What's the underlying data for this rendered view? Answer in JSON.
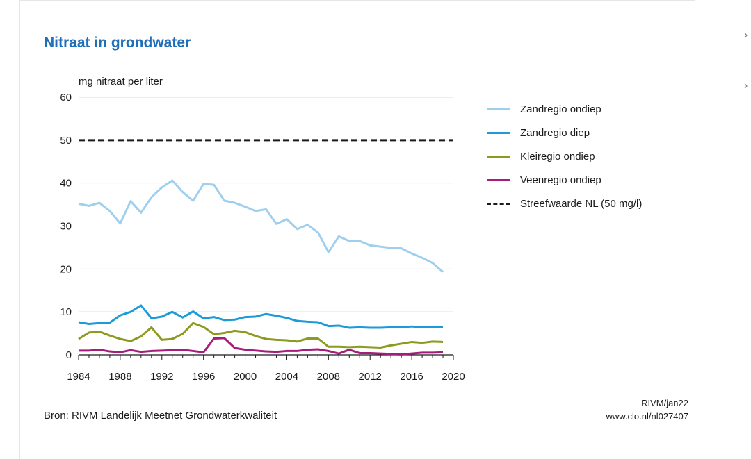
{
  "title": "Nitraat in grondwater",
  "source": "Bron: RIVM Landelijk Meetnet Grondwaterkwaliteit",
  "credit_line1": "RIVM/jan22",
  "credit_line2": "www.clo.nl/nl027407",
  "nav": {
    "chevron1": "›",
    "chevron2": "›"
  },
  "chart_data": {
    "type": "line",
    "ylabel": "mg nitraat per liter",
    "xlim": [
      1984,
      2020
    ],
    "ylim": [
      0,
      60
    ],
    "xticks": [
      "1984",
      "1988",
      "1992",
      "1996",
      "2000",
      "2004",
      "2008",
      "2012",
      "2016",
      "2020"
    ],
    "yticks": [
      "0",
      "10",
      "20",
      "30",
      "40",
      "50",
      "60"
    ],
    "grid": true,
    "legend_position": "right",
    "x": [
      1984,
      1985,
      1986,
      1987,
      1988,
      1989,
      1990,
      1991,
      1992,
      1993,
      1994,
      1995,
      1996,
      1997,
      1998,
      1999,
      2000,
      2001,
      2002,
      2003,
      2004,
      2005,
      2006,
      2007,
      2008,
      2009,
      2010,
      2011,
      2012,
      2013,
      2014,
      2015,
      2016,
      2017,
      2018,
      2019
    ],
    "series": [
      {
        "name": "Zandregio ondiep",
        "color": "#9fcfee",
        "values": [
          35.2,
          34.7,
          35.4,
          33.5,
          30.6,
          35.8,
          33.1,
          36.7,
          39.0,
          40.6,
          37.9,
          35.9,
          39.8,
          39.6,
          35.9,
          35.4,
          34.5,
          33.5,
          33.9,
          30.5,
          31.6,
          29.3,
          30.3,
          28.5,
          23.9,
          27.6,
          26.5,
          26.5,
          25.5,
          25.2,
          24.9,
          24.8,
          23.6,
          22.6,
          21.4,
          19.3
        ]
      },
      {
        "name": "Zandregio diep",
        "color": "#1d9bd8",
        "values": [
          7.6,
          7.2,
          7.4,
          7.5,
          9.2,
          10.0,
          11.5,
          8.5,
          8.9,
          10.0,
          8.7,
          10.1,
          8.5,
          8.8,
          8.1,
          8.2,
          8.8,
          8.9,
          9.5,
          9.1,
          8.6,
          7.9,
          7.7,
          7.6,
          6.7,
          6.8,
          6.3,
          6.4,
          6.3,
          6.3,
          6.4,
          6.4,
          6.6,
          6.4,
          6.5,
          6.5
        ]
      },
      {
        "name": "Kleiregio ondiep",
        "color": "#8c9a1f",
        "values": [
          3.7,
          5.2,
          5.4,
          4.5,
          3.7,
          3.2,
          4.3,
          6.4,
          3.5,
          3.7,
          4.9,
          7.4,
          6.5,
          4.8,
          5.1,
          5.6,
          5.3,
          4.4,
          3.7,
          3.5,
          3.4,
          3.1,
          3.8,
          3.8,
          1.9,
          1.9,
          1.8,
          1.9,
          1.8,
          1.7,
          2.2,
          2.6,
          3.0,
          2.8,
          3.1,
          3.0
        ]
      },
      {
        "name": "Veenregio ondiep",
        "color": "#a61b7c",
        "values": [
          1.0,
          1.0,
          1.2,
          0.8,
          0.6,
          1.1,
          0.7,
          0.9,
          1.0,
          1.1,
          1.2,
          0.9,
          0.6,
          3.8,
          3.9,
          1.6,
          1.2,
          1.0,
          0.8,
          0.7,
          0.9,
          0.9,
          1.2,
          1.3,
          0.9,
          0.3,
          1.2,
          0.4,
          0.4,
          0.3,
          0.2,
          0.1,
          0.3,
          0.5,
          0.5,
          0.6
        ]
      }
    ],
    "reference_line": {
      "name": "Streefwaarde NL (50 mg/l)",
      "value": 50,
      "color": "#1a1a1a",
      "style": "dashed"
    }
  }
}
